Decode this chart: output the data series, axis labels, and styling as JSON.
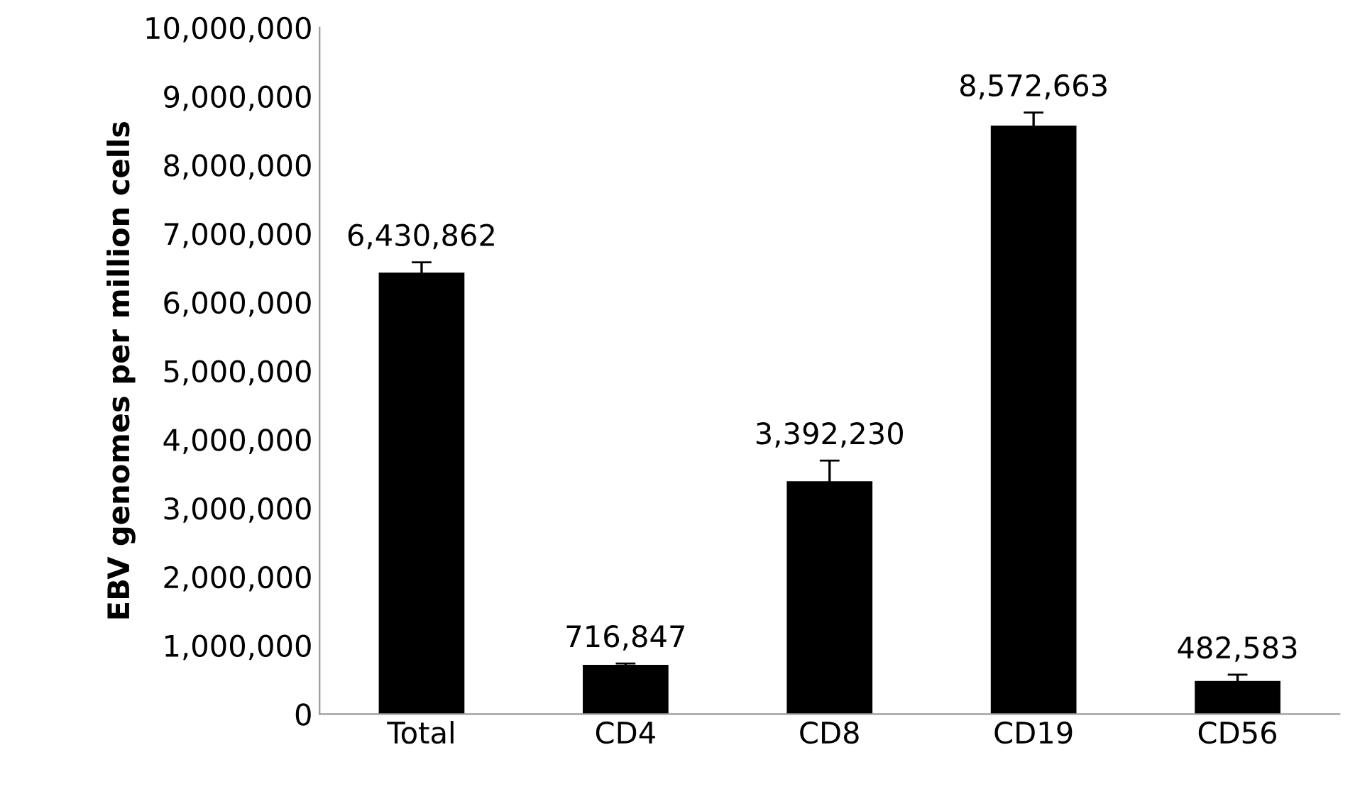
{
  "chart_data": {
    "type": "bar",
    "ylabel": "EBV genomes per million cells",
    "categories": [
      "Total",
      "CD4",
      "CD8",
      "CD19",
      "CD56"
    ],
    "values": [
      6430862,
      716847,
      3392230,
      8572663,
      482583
    ],
    "errors": [
      150000,
      20000,
      300000,
      190000,
      90000
    ],
    "value_labels": [
      "6,430,862",
      "716,847",
      "3,392,230",
      "8,572,663",
      "482,583"
    ],
    "color": "#000000",
    "ylim": [
      0,
      10000000
    ],
    "yticks": [
      {
        "value": 0,
        "label": "0"
      },
      {
        "value": 1000000,
        "label": "1,000,000"
      },
      {
        "value": 2000000,
        "label": "2,000,000"
      },
      {
        "value": 3000000,
        "label": "3,000,000"
      },
      {
        "value": 4000000,
        "label": "4,000,000"
      },
      {
        "value": 5000000,
        "label": "5,000,000"
      },
      {
        "value": 6000000,
        "label": "6,000,000"
      },
      {
        "value": 7000000,
        "label": "7,000,000"
      },
      {
        "value": 8000000,
        "label": "8,000,000"
      },
      {
        "value": 9000000,
        "label": "9,000,000"
      },
      {
        "value": 10000000,
        "label": "10,000,000"
      }
    ],
    "grid": false,
    "legend": false
  }
}
